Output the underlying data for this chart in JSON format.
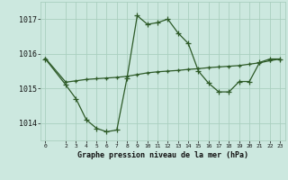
{
  "background_color": "#cce8df",
  "grid_color": "#aacfbf",
  "line_color": "#2d5a27",
  "title": "Graphe pression niveau de la mer (hPa)",
  "ylim": [
    1013.5,
    1017.5
  ],
  "yticks": [
    1014,
    1015,
    1016,
    1017
  ],
  "xlim": [
    -0.5,
    23.5
  ],
  "xticks": [
    0,
    2,
    3,
    4,
    5,
    6,
    7,
    8,
    9,
    10,
    11,
    12,
    13,
    14,
    15,
    16,
    17,
    18,
    19,
    20,
    21,
    22,
    23
  ],
  "series1_x": [
    0,
    2,
    3,
    4,
    5,
    6,
    7,
    8,
    9,
    10,
    11,
    12,
    13,
    14,
    15,
    16,
    17,
    18,
    19,
    20,
    21,
    22,
    23
  ],
  "series1_y": [
    1015.85,
    1015.1,
    1014.7,
    1014.1,
    1013.85,
    1013.75,
    1013.8,
    1015.3,
    1017.1,
    1016.85,
    1016.9,
    1017.0,
    1016.6,
    1016.3,
    1015.5,
    1015.15,
    1014.9,
    1014.9,
    1015.2,
    1015.2,
    1015.75,
    1015.85,
    1015.85
  ],
  "series2_x": [
    0,
    2,
    3,
    4,
    5,
    6,
    7,
    8,
    9,
    10,
    11,
    12,
    13,
    14,
    15,
    16,
    17,
    18,
    19,
    20,
    21,
    22,
    23
  ],
  "series2_y": [
    1015.87,
    1015.18,
    1015.22,
    1015.26,
    1015.28,
    1015.3,
    1015.32,
    1015.35,
    1015.4,
    1015.45,
    1015.48,
    1015.5,
    1015.52,
    1015.55,
    1015.57,
    1015.6,
    1015.62,
    1015.64,
    1015.66,
    1015.7,
    1015.74,
    1015.8,
    1015.85
  ]
}
